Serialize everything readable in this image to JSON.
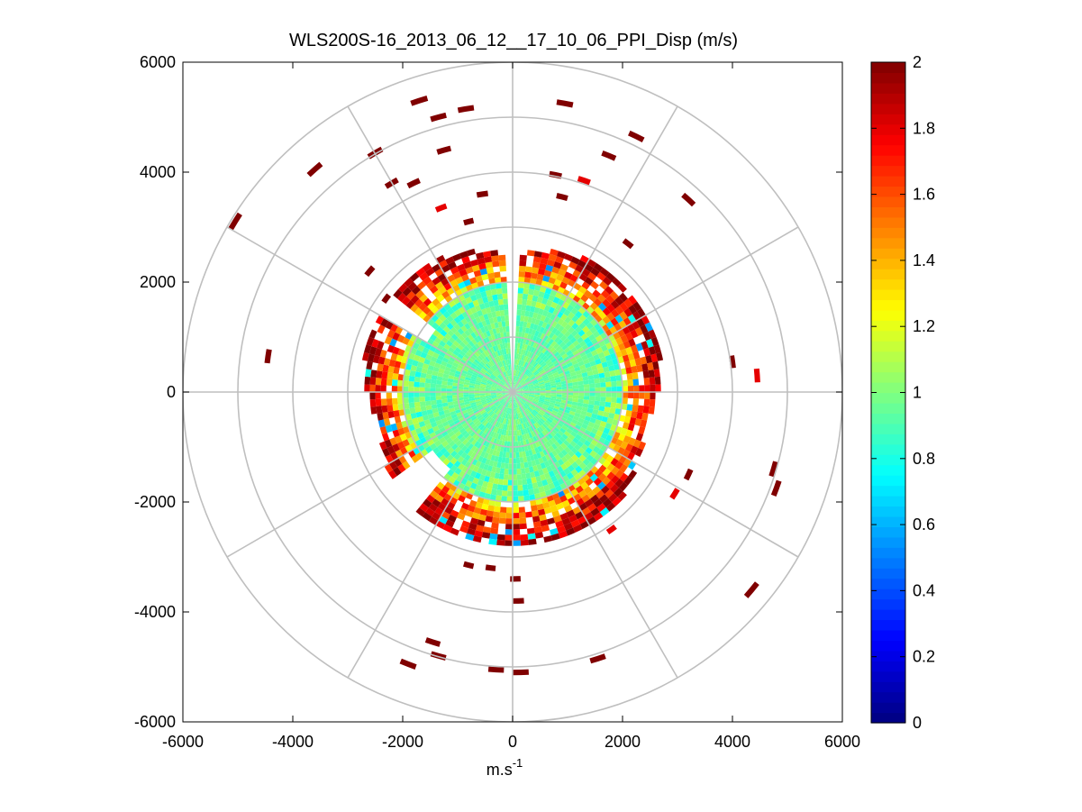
{
  "chart_data": {
    "type": "heatmap",
    "subtype": "polar-ppi",
    "title": "WLS200S-16_2013_06_12__17_10_06_PPI_Disp (m/s)",
    "xlabel_base": "m.s",
    "xlabel_exp": "-1",
    "ylabel": "",
    "xlim": [
      -6000,
      6000
    ],
    "ylim": [
      -6000,
      6000
    ],
    "x_ticks": [
      -6000,
      -4000,
      -2000,
      0,
      2000,
      4000,
      6000
    ],
    "y_ticks": [
      -6000,
      -4000,
      -2000,
      0,
      2000,
      4000,
      6000
    ],
    "x_tick_labels": [
      "-6000",
      "-4000",
      "-2000",
      "0",
      "2000",
      "4000",
      "6000"
    ],
    "y_tick_labels": [
      "-6000",
      "-4000",
      "-2000",
      "0",
      "2000",
      "4000",
      "6000"
    ],
    "grid_rings": [
      1000,
      2000,
      3000,
      4000,
      5000,
      6000
    ],
    "grid_spoke_angles_deg": [
      0,
      30,
      60,
      90,
      120,
      150,
      180,
      210,
      240,
      270,
      300,
      330
    ],
    "colorbar": {
      "colormap": "jet",
      "min": 0,
      "max": 2,
      "ticks": [
        0,
        0.2,
        0.4,
        0.6,
        0.8,
        1,
        1.2,
        1.4,
        1.6,
        1.8,
        2
      ],
      "tick_labels": [
        "0",
        "0.2",
        "0.4",
        "0.6",
        "0.8",
        "1",
        "1.2",
        "1.4",
        "1.6",
        "1.8",
        "2"
      ]
    },
    "field": {
      "core_radius": 2000,
      "core_value": 0.95,
      "ring_radius_min": 2000,
      "ring_radius_max": 2800,
      "ring_value_min": 1.1,
      "ring_value_max": 2.0,
      "gap_bearing_deg": [
        -2,
        2
      ],
      "gap2_bearing_deg": [
        -60,
        -50
      ],
      "gap3_bearing_deg": [
        -140,
        -125
      ]
    },
    "scattered_cells": [
      {
        "x": -1700,
        "y": 5300,
        "value": 2.0
      },
      {
        "x": -1350,
        "y": 5000,
        "value": 2.0
      },
      {
        "x": -1250,
        "y": 4400,
        "value": 2.0
      },
      {
        "x": -2500,
        "y": 4350,
        "value": 2.0
      },
      {
        "x": -3600,
        "y": 4050,
        "value": 2.0
      },
      {
        "x": -5050,
        "y": 3100,
        "value": 2.0
      },
      {
        "x": -2200,
        "y": 3800,
        "value": 2.0
      },
      {
        "x": -1800,
        "y": 3800,
        "value": 2.0
      },
      {
        "x": -850,
        "y": 5150,
        "value": 2.0
      },
      {
        "x": -550,
        "y": 3600,
        "value": 2.0
      },
      {
        "x": -1300,
        "y": 3350,
        "value": 1.8
      },
      {
        "x": -800,
        "y": 3100,
        "value": 2.0
      },
      {
        "x": 950,
        "y": 5250,
        "value": 2.0
      },
      {
        "x": 2250,
        "y": 4650,
        "value": 2.0
      },
      {
        "x": 1750,
        "y": 4300,
        "value": 2.0
      },
      {
        "x": 780,
        "y": 3950,
        "value": 2.0
      },
      {
        "x": 1300,
        "y": 3850,
        "value": 1.8
      },
      {
        "x": 900,
        "y": 3550,
        "value": 2.0
      },
      {
        "x": 3200,
        "y": 3500,
        "value": 2.0
      },
      {
        "x": 2100,
        "y": 2700,
        "value": 2.0
      },
      {
        "x": 4000,
        "y": 550,
        "value": 2.0
      },
      {
        "x": 4450,
        "y": 300,
        "value": 1.8
      },
      {
        "x": -4450,
        "y": 650,
        "value": 2.0
      },
      {
        "x": -2600,
        "y": 2200,
        "value": 2.0
      },
      {
        "x": -2300,
        "y": 1700,
        "value": 2.0
      },
      {
        "x": 3200,
        "y": -1500,
        "value": 2.0
      },
      {
        "x": 2950,
        "y": -1850,
        "value": 1.8
      },
      {
        "x": 4750,
        "y": -1400,
        "value": 2.0
      },
      {
        "x": 4800,
        "y": -1750,
        "value": 2.0
      },
      {
        "x": 4350,
        "y": -3600,
        "value": 2.0
      },
      {
        "x": 1800,
        "y": -2500,
        "value": 1.8
      },
      {
        "x": -800,
        "y": -3150,
        "value": 2.0
      },
      {
        "x": -400,
        "y": -3200,
        "value": 2.0
      },
      {
        "x": 50,
        "y": -3400,
        "value": 2.0
      },
      {
        "x": 100,
        "y": -3800,
        "value": 2.0
      },
      {
        "x": -1450,
        "y": -4550,
        "value": 2.0
      },
      {
        "x": -1350,
        "y": -4800,
        "value": 2.0
      },
      {
        "x": -1900,
        "y": -4950,
        "value": 2.0
      },
      {
        "x": -300,
        "y": -5050,
        "value": 2.0
      },
      {
        "x": 150,
        "y": -5100,
        "value": 2.0
      },
      {
        "x": 1550,
        "y": -4850,
        "value": 2.0
      }
    ]
  }
}
